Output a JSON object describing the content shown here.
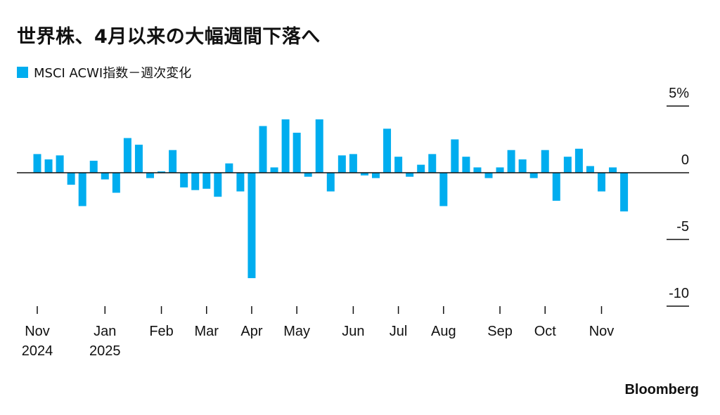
{
  "title": "世界株、4月以来の大幅週間下落へ",
  "brand": "Bloomberg",
  "chart_data": {
    "type": "bar",
    "legend": [
      "MSCI ACWI指数－週次変化"
    ],
    "color": "#00adef",
    "ylim": [
      -10,
      5
    ],
    "yticks": [
      {
        "value": 5,
        "label": "5%"
      },
      {
        "value": 0,
        "label": "0"
      },
      {
        "value": -5,
        "label": "-5"
      },
      {
        "value": -10,
        "label": "-10"
      }
    ],
    "xticks": [
      {
        "label": "Nov",
        "label2": "2024",
        "index": 0
      },
      {
        "label": "Jan",
        "label2": "2025",
        "index": 6
      },
      {
        "label": "Feb",
        "label2": "",
        "index": 11
      },
      {
        "label": "Mar",
        "label2": "",
        "index": 15
      },
      {
        "label": "Apr",
        "label2": "",
        "index": 19
      },
      {
        "label": "May",
        "label2": "",
        "index": 23
      },
      {
        "label": "Jun",
        "label2": "",
        "index": 28
      },
      {
        "label": "Jul",
        "label2": "",
        "index": 32
      },
      {
        "label": "Aug",
        "label2": "",
        "index": 36
      },
      {
        "label": "Sep",
        "label2": "",
        "index": 41
      },
      {
        "label": "Oct",
        "label2": "",
        "index": 45
      },
      {
        "label": "Nov",
        "label2": "",
        "index": 50
      }
    ],
    "values": [
      1.4,
      1.0,
      1.3,
      -0.9,
      -2.5,
      0.9,
      -0.5,
      -1.5,
      2.6,
      2.1,
      -0.4,
      0.1,
      1.7,
      -1.1,
      -1.3,
      -1.2,
      -1.8,
      0.7,
      -1.4,
      -7.9,
      3.5,
      0.4,
      4.0,
      3.0,
      -0.3,
      4.0,
      -1.4,
      1.3,
      1.4,
      -0.2,
      -0.4,
      3.3,
      1.2,
      -0.3,
      0.6,
      1.4,
      -2.5,
      2.5,
      1.2,
      0.4,
      -0.4,
      0.4,
      1.7,
      1.0,
      -0.4,
      1.7,
      -2.1,
      1.2,
      1.8,
      0.5,
      -1.4,
      0.4,
      -2.9
    ]
  }
}
